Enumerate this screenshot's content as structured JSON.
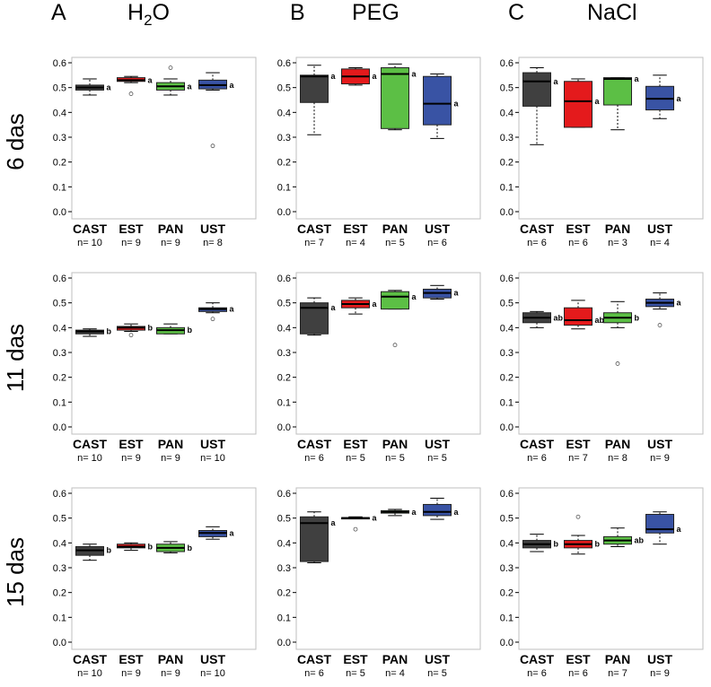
{
  "headers": {
    "letters": [
      "A",
      "B",
      "C"
    ],
    "conditions": [
      {
        "main": "H",
        "sub": "2",
        "tail": "O"
      },
      {
        "main": "PEG",
        "sub": "",
        "tail": ""
      },
      {
        "main": "NaCl",
        "sub": "",
        "tail": ""
      }
    ]
  },
  "row_labels": [
    "6 das",
    "11 das",
    "15 das"
  ],
  "colors": {
    "CAST": "#404040",
    "EST": "#e41a1c",
    "PAN": "#5cbf45",
    "UST": "#3953a4",
    "axis": "#bfbfbf",
    "whisker": "#000000"
  },
  "chart_data": [
    {
      "type": "boxplot",
      "row": 0,
      "col": 0,
      "condition": "H2O",
      "time": "6 das",
      "ylim": [
        0,
        0.6
      ],
      "yticks": [
        "0.0",
        "0.1",
        "0.2",
        "0.3",
        "0.4",
        "0.5",
        "0.6"
      ],
      "categories": [
        "CAST",
        "EST",
        "PAN",
        "UST"
      ],
      "n": [
        "n= 10",
        "n= 9",
        "n= 9",
        "n= 8"
      ],
      "sig": [
        "a",
        "a",
        "a",
        "a"
      ],
      "boxes": [
        {
          "min": 0.47,
          "q1": 0.49,
          "median": 0.5,
          "q3": 0.51,
          "max": 0.535,
          "outliers": []
        },
        {
          "min": 0.52,
          "q1": 0.525,
          "median": 0.53,
          "q3": 0.54,
          "max": 0.545,
          "outliers": [
            0.475
          ]
        },
        {
          "min": 0.47,
          "q1": 0.49,
          "median": 0.505,
          "q3": 0.52,
          "max": 0.535,
          "outliers": [
            0.58
          ]
        },
        {
          "min": 0.49,
          "q1": 0.495,
          "median": 0.51,
          "q3": 0.53,
          "max": 0.56,
          "outliers": [
            0.265
          ]
        }
      ]
    },
    {
      "type": "boxplot",
      "row": 0,
      "col": 1,
      "condition": "PEG",
      "time": "6 das",
      "ylim": [
        0,
        0.6
      ],
      "yticks": [
        "0.0",
        "0.1",
        "0.2",
        "0.3",
        "0.4",
        "0.5",
        "0.6"
      ],
      "categories": [
        "CAST",
        "EST",
        "PAN",
        "UST"
      ],
      "n": [
        "n= 7",
        "n= 4",
        "n= 5",
        "n= 6"
      ],
      "sig": [
        "a",
        "a",
        "a",
        "a"
      ],
      "boxes": [
        {
          "min": 0.31,
          "q1": 0.44,
          "median": 0.545,
          "q3": 0.55,
          "max": 0.59,
          "outliers": []
        },
        {
          "min": 0.51,
          "q1": 0.515,
          "median": 0.545,
          "q3": 0.575,
          "max": 0.58,
          "outliers": []
        },
        {
          "min": 0.33,
          "q1": 0.335,
          "median": 0.555,
          "q3": 0.58,
          "max": 0.595,
          "outliers": []
        },
        {
          "min": 0.295,
          "q1": 0.35,
          "median": 0.435,
          "q3": 0.545,
          "max": 0.555,
          "outliers": []
        }
      ]
    },
    {
      "type": "boxplot",
      "row": 0,
      "col": 2,
      "condition": "NaCl",
      "time": "6 das",
      "ylim": [
        0,
        0.6
      ],
      "yticks": [
        "0.0",
        "0.1",
        "0.2",
        "0.3",
        "0.4",
        "0.5",
        "0.6"
      ],
      "categories": [
        "CAST",
        "EST",
        "PAN",
        "UST"
      ],
      "n": [
        "n= 6",
        "n= 6",
        "n= 3",
        "n= 4"
      ],
      "sig": [
        "a",
        "a",
        "a",
        "a"
      ],
      "boxes": [
        {
          "min": 0.27,
          "q1": 0.425,
          "median": 0.525,
          "q3": 0.56,
          "max": 0.58,
          "outliers": []
        },
        {
          "min": 0.34,
          "q1": 0.34,
          "median": 0.445,
          "q3": 0.525,
          "max": 0.535,
          "outliers": []
        },
        {
          "min": 0.33,
          "q1": 0.43,
          "median": 0.535,
          "q3": 0.54,
          "max": 0.54,
          "outliers": []
        },
        {
          "min": 0.375,
          "q1": 0.41,
          "median": 0.455,
          "q3": 0.505,
          "max": 0.55,
          "outliers": []
        }
      ]
    },
    {
      "type": "boxplot",
      "row": 1,
      "col": 0,
      "condition": "H2O",
      "time": "11 das",
      "ylim": [
        0,
        0.6
      ],
      "yticks": [
        "0.0",
        "0.1",
        "0.2",
        "0.3",
        "0.4",
        "0.5",
        "0.6"
      ],
      "categories": [
        "CAST",
        "EST",
        "PAN",
        "UST"
      ],
      "n": [
        "n= 10",
        "n= 9",
        "n= 9",
        "n= 10"
      ],
      "sig": [
        "b",
        "b",
        "b",
        "a"
      ],
      "boxes": [
        {
          "min": 0.365,
          "q1": 0.375,
          "median": 0.385,
          "q3": 0.39,
          "max": 0.395,
          "outliers": []
        },
        {
          "min": 0.385,
          "q1": 0.39,
          "median": 0.4,
          "q3": 0.405,
          "max": 0.415,
          "outliers": [
            0.37
          ]
        },
        {
          "min": 0.375,
          "q1": 0.375,
          "median": 0.39,
          "q3": 0.4,
          "max": 0.415,
          "outliers": []
        },
        {
          "min": 0.46,
          "q1": 0.465,
          "median": 0.475,
          "q3": 0.48,
          "max": 0.5,
          "outliers": [
            0.435
          ]
        }
      ]
    },
    {
      "type": "boxplot",
      "row": 1,
      "col": 1,
      "condition": "PEG",
      "time": "11 das",
      "ylim": [
        0,
        0.6
      ],
      "yticks": [
        "0.0",
        "0.1",
        "0.2",
        "0.3",
        "0.4",
        "0.5",
        "0.6"
      ],
      "categories": [
        "CAST",
        "EST",
        "PAN",
        "UST"
      ],
      "n": [
        "n= 6",
        "n= 5",
        "n= 5",
        "n= 5"
      ],
      "sig": [
        "a",
        "a",
        "a",
        "a"
      ],
      "boxes": [
        {
          "min": 0.37,
          "q1": 0.375,
          "median": 0.48,
          "q3": 0.5,
          "max": 0.52,
          "outliers": []
        },
        {
          "min": 0.455,
          "q1": 0.48,
          "median": 0.495,
          "q3": 0.51,
          "max": 0.52,
          "outliers": []
        },
        {
          "min": 0.475,
          "q1": 0.475,
          "median": 0.525,
          "q3": 0.545,
          "max": 0.55,
          "outliers": [
            0.33
          ]
        },
        {
          "min": 0.515,
          "q1": 0.52,
          "median": 0.54,
          "q3": 0.555,
          "max": 0.57,
          "outliers": []
        }
      ]
    },
    {
      "type": "boxplot",
      "row": 1,
      "col": 2,
      "condition": "NaCl",
      "time": "11 das",
      "ylim": [
        0,
        0.6
      ],
      "yticks": [
        "0.0",
        "0.1",
        "0.2",
        "0.3",
        "0.4",
        "0.5",
        "0.6"
      ],
      "categories": [
        "CAST",
        "EST",
        "PAN",
        "UST"
      ],
      "n": [
        "n= 6",
        "n= 7",
        "n= 8",
        "n= 9"
      ],
      "sig": [
        "ab",
        "ab",
        "b",
        "a"
      ],
      "boxes": [
        {
          "min": 0.4,
          "q1": 0.42,
          "median": 0.44,
          "q3": 0.46,
          "max": 0.465,
          "outliers": []
        },
        {
          "min": 0.395,
          "q1": 0.41,
          "median": 0.43,
          "q3": 0.48,
          "max": 0.51,
          "outliers": []
        },
        {
          "min": 0.4,
          "q1": 0.42,
          "median": 0.44,
          "q3": 0.46,
          "max": 0.505,
          "outliers": [
            0.255
          ]
        },
        {
          "min": 0.475,
          "q1": 0.485,
          "median": 0.5,
          "q3": 0.515,
          "max": 0.54,
          "outliers": [
            0.41
          ]
        }
      ]
    },
    {
      "type": "boxplot",
      "row": 2,
      "col": 0,
      "condition": "H2O",
      "time": "15 das",
      "ylim": [
        0,
        0.6
      ],
      "yticks": [
        "0.0",
        "0.1",
        "0.2",
        "0.3",
        "0.4",
        "0.5",
        "0.6"
      ],
      "categories": [
        "CAST",
        "EST",
        "PAN",
        "UST"
      ],
      "n": [
        "n= 10",
        "n= 9",
        "n= 9",
        "n= 10"
      ],
      "sig": [
        "b",
        "b",
        "b",
        "a"
      ],
      "boxes": [
        {
          "min": 0.33,
          "q1": 0.35,
          "median": 0.37,
          "q3": 0.385,
          "max": 0.395,
          "outliers": []
        },
        {
          "min": 0.37,
          "q1": 0.38,
          "median": 0.385,
          "q3": 0.395,
          "max": 0.4,
          "outliers": []
        },
        {
          "min": 0.36,
          "q1": 0.365,
          "median": 0.38,
          "q3": 0.395,
          "max": 0.405,
          "outliers": []
        },
        {
          "min": 0.415,
          "q1": 0.425,
          "median": 0.44,
          "q3": 0.45,
          "max": 0.465,
          "outliers": []
        }
      ]
    },
    {
      "type": "boxplot",
      "row": 2,
      "col": 1,
      "condition": "PEG",
      "time": "15 das",
      "ylim": [
        0,
        0.6
      ],
      "yticks": [
        "0.0",
        "0.1",
        "0.2",
        "0.3",
        "0.4",
        "0.5",
        "0.6"
      ],
      "categories": [
        "CAST",
        "EST",
        "PAN",
        "UST"
      ],
      "n": [
        "n= 6",
        "n= 5",
        "n= 4",
        "n= 5"
      ],
      "sig": [
        "a",
        "a",
        "a",
        "a"
      ],
      "boxes": [
        {
          "min": 0.32,
          "q1": 0.325,
          "median": 0.48,
          "q3": 0.505,
          "max": 0.525,
          "outliers": []
        },
        {
          "min": 0.5,
          "q1": 0.5,
          "median": 0.5,
          "q3": 0.502,
          "max": 0.505,
          "outliers": [
            0.455
          ]
        },
        {
          "min": 0.51,
          "q1": 0.52,
          "median": 0.525,
          "q3": 0.53,
          "max": 0.535,
          "outliers": []
        },
        {
          "min": 0.495,
          "q1": 0.51,
          "median": 0.525,
          "q3": 0.555,
          "max": 0.58,
          "outliers": []
        }
      ]
    },
    {
      "type": "boxplot",
      "row": 2,
      "col": 2,
      "condition": "NaCl",
      "time": "15 das",
      "ylim": [
        0,
        0.6
      ],
      "yticks": [
        "0.0",
        "0.1",
        "0.2",
        "0.3",
        "0.4",
        "0.5",
        "0.6"
      ],
      "categories": [
        "CAST",
        "EST",
        "PAN",
        "UST"
      ],
      "n": [
        "n= 6",
        "n= 6",
        "n= 7",
        "n= 9"
      ],
      "sig": [
        "b",
        "b",
        "ab",
        "a"
      ],
      "boxes": [
        {
          "min": 0.365,
          "q1": 0.38,
          "median": 0.395,
          "q3": 0.41,
          "max": 0.435,
          "outliers": []
        },
        {
          "min": 0.355,
          "q1": 0.38,
          "median": 0.395,
          "q3": 0.41,
          "max": 0.43,
          "outliers": [
            0.505
          ]
        },
        {
          "min": 0.385,
          "q1": 0.395,
          "median": 0.41,
          "q3": 0.425,
          "max": 0.46,
          "outliers": []
        },
        {
          "min": 0.395,
          "q1": 0.44,
          "median": 0.455,
          "q3": 0.515,
          "max": 0.525,
          "outliers": []
        }
      ]
    }
  ]
}
